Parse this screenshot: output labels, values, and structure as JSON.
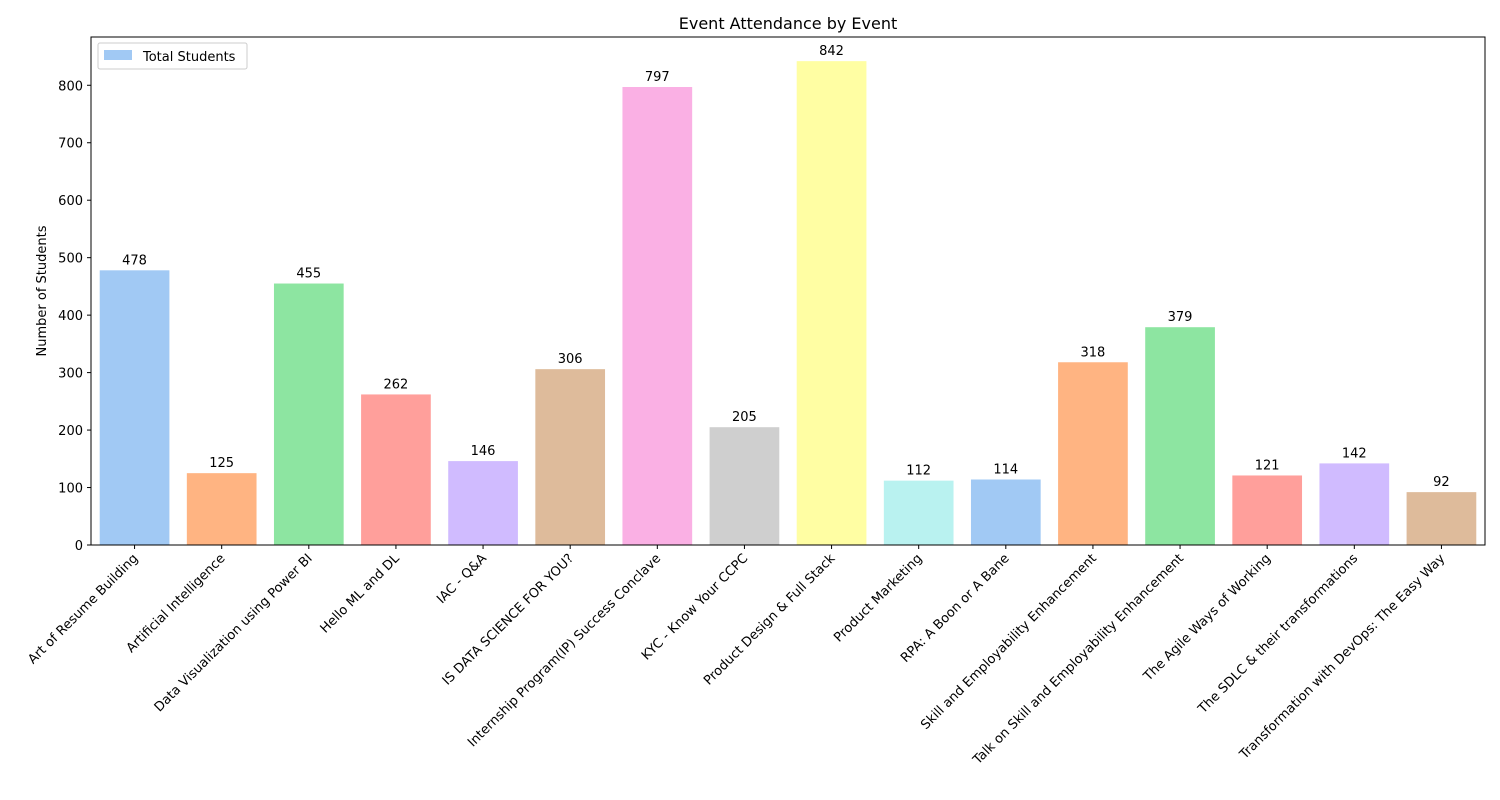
{
  "chart_data": {
    "type": "bar",
    "title": "Event Attendance by Event",
    "xlabel": "",
    "ylabel": "Number of Students",
    "categories": [
      "Art of Resume Building",
      "Artificial Intelligence",
      "Data Visualization using Power BI",
      "Hello ML and DL",
      "IAC - Q&A",
      "IS DATA SCIENCE FOR YOU?",
      "Internship Program(IP) Success Conclave",
      "KYC - Know Your CCPC",
      "Product Design & Full Stack",
      "Product Marketing",
      "RPA: A Boon or A Bane",
      "Skill and Employability Enhancement",
      "Talk on Skill and Employability Enhancement",
      "The Agile Ways of Working",
      "The SDLC & their transformations",
      "Transformation with DevOps: The Easy Way"
    ],
    "series": [
      {
        "name": "Total Students",
        "values": [
          478,
          125,
          455,
          262,
          146,
          306,
          797,
          205,
          842,
          112,
          114,
          318,
          379,
          121,
          142,
          92
        ]
      }
    ],
    "data_labels": [
      "478",
      "125",
      "455",
      "262",
      "146",
      "306",
      "797",
      "205",
      "842",
      "112",
      "114",
      "318",
      "379",
      "121",
      "142",
      "92"
    ],
    "colors": [
      "#a1c9f4",
      "#ffb482",
      "#8de5a1",
      "#ff9f9b",
      "#d0bbff",
      "#debb9b",
      "#fab0e4",
      "#cfcfcf",
      "#fffea3",
      "#b9f2f0",
      "#a1c9f4",
      "#ffb482",
      "#8de5a1",
      "#ff9f9b",
      "#d0bbff",
      "#debb9b"
    ],
    "ylim": [
      0,
      884
    ],
    "yticks": [
      "0",
      "100",
      "200",
      "300",
      "400",
      "500",
      "600",
      "700",
      "800"
    ],
    "grid": false,
    "legend_position": "upper-left"
  }
}
